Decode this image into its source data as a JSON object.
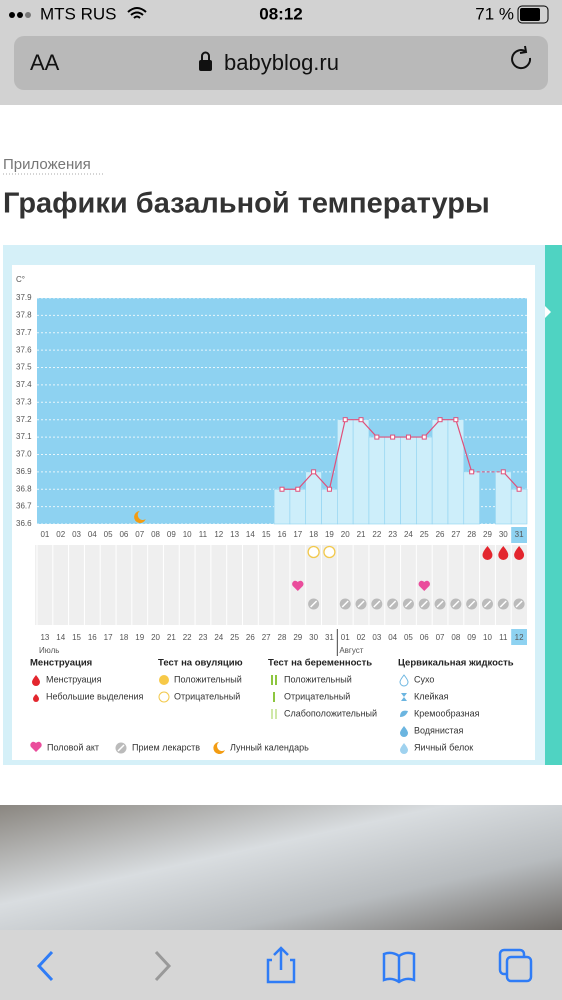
{
  "status_bar": {
    "carrier": "MTS RUS",
    "time": "08:12",
    "battery": "71 %"
  },
  "address_bar": {
    "text_size": "AA",
    "url": "babyblog.ru"
  },
  "breadcrumb": "Приложения",
  "heading": "Графики базальной температуры",
  "chart_data": {
    "type": "bar",
    "y_unit": "С°",
    "categories": [
      "01",
      "02",
      "03",
      "04",
      "05",
      "06",
      "07",
      "08",
      "09",
      "10",
      "11",
      "12",
      "13",
      "14",
      "15",
      "16",
      "17",
      "18",
      "19",
      "20",
      "21",
      "22",
      "23",
      "24",
      "25",
      "26",
      "27",
      "28",
      "29",
      "30",
      "31"
    ],
    "values": [
      null,
      null,
      null,
      null,
      null,
      null,
      null,
      null,
      null,
      null,
      null,
      null,
      null,
      null,
      null,
      36.8,
      36.8,
      36.9,
      36.8,
      37.2,
      37.2,
      37.1,
      37.1,
      37.1,
      37.1,
      37.2,
      37.2,
      36.9,
      null,
      36.9,
      36.8
    ],
    "ylim": [
      36.6,
      37.9
    ],
    "yticks": [
      36.6,
      36.7,
      36.8,
      36.9,
      {
        "value": 37,
        "label": "37.0"
      },
      37.1,
      37.2,
      37.3,
      37.4,
      37.5,
      37.6,
      37.7,
      37.8,
      37.9
    ],
    "grid": true,
    "bar_color": "#cdeefa",
    "empty_color": "#8ed2f1",
    "line_color": "#e0507a",
    "dates": [
      "13",
      "14",
      "15",
      "16",
      "17",
      "18",
      "19",
      "20",
      "21",
      "22",
      "23",
      "24",
      "25",
      "26",
      "27",
      "28",
      "29",
      "30",
      "31",
      "01",
      "02",
      "03",
      "04",
      "05",
      "06",
      "07",
      "08",
      "09",
      "10",
      "11",
      "12"
    ],
    "weekend_indices": [
      4,
      5,
      11,
      12,
      18,
      25,
      26
    ],
    "weekend_color": "#e0245e",
    "months": [
      "Июль",
      "Август"
    ],
    "month_starts": [
      0,
      19
    ],
    "today_index": 30,
    "moon_day": 7,
    "ovulation_negative_days": [
      18,
      19
    ],
    "intercourse_days": [
      17,
      25
    ],
    "medication_days": [
      18,
      20,
      21,
      22,
      23,
      24,
      25,
      26,
      27,
      28,
      29,
      30,
      31
    ],
    "menstruation_days": [
      29,
      30,
      31
    ]
  },
  "legend": {
    "groups": [
      {
        "title": "Менструация",
        "items": [
          "Менструация",
          "Небольшие выделения"
        ]
      },
      {
        "title": "Тест на овуляцию",
        "items": [
          "Положительный",
          "Отрицательный"
        ]
      },
      {
        "title": "Тест на беременность",
        "items": [
          "Положительный",
          "Отрицательный",
          "Слабоположительный"
        ]
      },
      {
        "title": "Цервикальная жидкость",
        "items": [
          "Сухо",
          "Клейкая",
          "Кремообразная",
          "Водянистая",
          "Яичный белок"
        ]
      }
    ],
    "extra": [
      "Половой акт",
      "Прием лекарств",
      "Лунный календарь"
    ]
  }
}
